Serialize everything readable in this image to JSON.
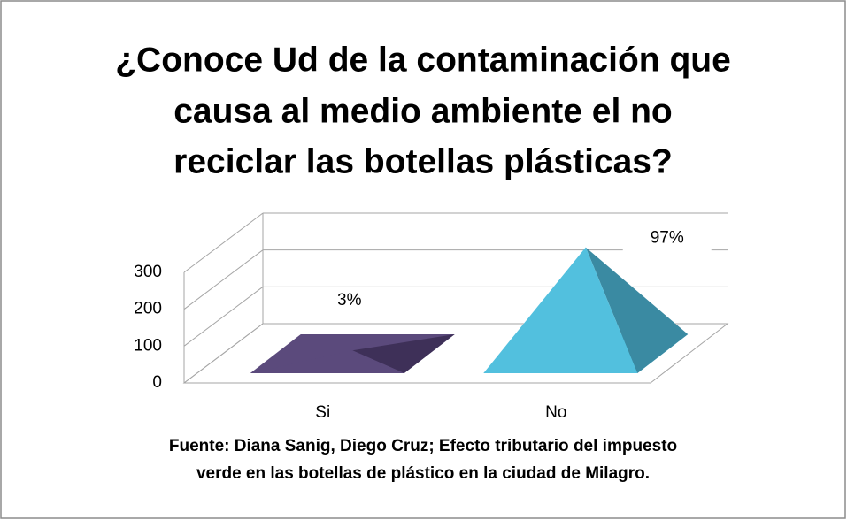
{
  "chart_data": {
    "type": "pyramid",
    "title": [
      "¿Conoce Ud de la contaminación que",
      "causa al medio ambiente el no",
      "reciclar las botellas plásticas?"
    ],
    "categories": [
      "Si",
      "No"
    ],
    "values": [
      9,
      289
    ],
    "percent_labels": [
      "3%",
      "97%"
    ],
    "colors": [
      [
        "#5b4a7c",
        "#3e3058"
      ],
      [
        "#52c0de",
        "#3a8aa2"
      ]
    ],
    "ylim": [
      0,
      300
    ],
    "yticks": [
      0,
      100,
      200,
      300
    ],
    "grid": true,
    "source": [
      "Fuente: Diana Sanig, Diego Cruz; Efecto tributario del impuesto",
      "verde en las botellas de plástico en la ciudad de Milagro."
    ]
  }
}
